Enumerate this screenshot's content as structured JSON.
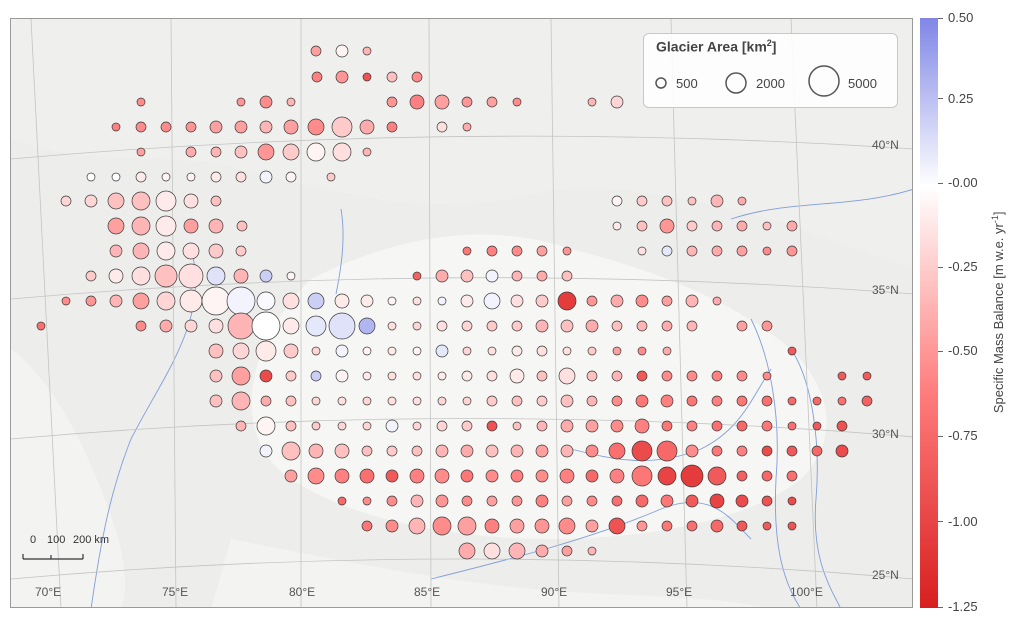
{
  "legend": {
    "title_main": "Glacier Area [km",
    "title_sup": "2",
    "title_end": "]",
    "sizes": [
      "500",
      "2000",
      "5000"
    ]
  },
  "scale_bar": {
    "labels": [
      "0",
      "100",
      "200 km"
    ]
  },
  "longitude_labels": [
    "70°E",
    "75°E",
    "80°E",
    "85°E",
    "90°E",
    "95°E",
    "100°E"
  ],
  "latitude_labels": [
    "40°N",
    "35°N",
    "30°N",
    "25°N"
  ],
  "colorbar": {
    "title": "Specific Mass Balance [m w.e. yr",
    "title_sup": "-1",
    "title_end": "]",
    "tick_labels": [
      "0.50",
      "0.25",
      "-0.00",
      "-0.25",
      "-0.50",
      "-0.75",
      "-1.00",
      "-1.25"
    ],
    "colors": {
      "positive": "#7f86e6",
      "zero": "#ffffff",
      "negative_mid": "#ff7b7b",
      "negative_max": "#d81f1f"
    }
  },
  "map_colors": {
    "land": "#e6e6e4",
    "plateau": "#f4f4f2",
    "rivers": "#6d8fd6",
    "graticule": "#b8b8b8"
  },
  "chart_data": {
    "type": "bubble-map",
    "size_variable": "Glacier Area [km2]",
    "color_variable": "Specific Mass Balance [m w.e. yr-1]",
    "color_range": [
      -1.25,
      0.5
    ],
    "size_legend": [
      500,
      2000,
      5000
    ]
  }
}
